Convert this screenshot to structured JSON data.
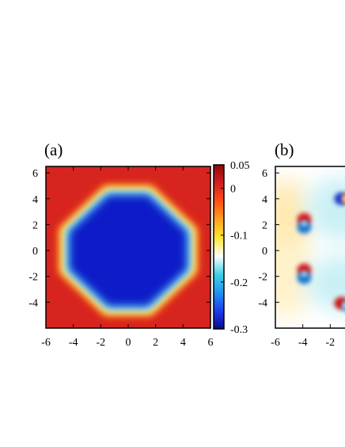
{
  "chart_data": [
    {
      "type": "heatmap",
      "panel_label": "(a)",
      "xlabel": "",
      "ylabel": "",
      "xlim": [
        -6,
        6
      ],
      "ylim": [
        -6,
        6.5
      ],
      "x_ticks": [
        "-6",
        "-4",
        "-2",
        "0",
        "2",
        "4",
        "6"
      ],
      "y_ticks": [
        "6",
        "4",
        "2",
        "0",
        "-2",
        "-4"
      ],
      "y_tick_values": [
        6,
        4,
        2,
        0,
        -2,
        -4
      ],
      "field": {
        "shape": "octagon",
        "center": [
          0,
          0
        ],
        "inner_value": -0.3,
        "outer_value": 0.05,
        "octagon_vertices": [
          [
            -1.5,
            4.5
          ],
          [
            1.5,
            4.5
          ],
          [
            4.5,
            1.5
          ],
          [
            4.5,
            -1.5
          ],
          [
            1.5,
            -4.5
          ],
          [
            -1.5,
            -4.5
          ],
          [
            -4.5,
            -1.5
          ],
          [
            -4.5,
            1.5
          ]
        ]
      },
      "colorbar": {
        "ticks": [
          "0.05",
          "0",
          "-0.1",
          "-0.2",
          "-0.3"
        ],
        "tick_values": [
          0.05,
          0,
          -0.1,
          -0.2,
          -0.3
        ],
        "range": [
          -0.3,
          0.05
        ],
        "colors": [
          "#0a0a8c",
          "#1e3cf0",
          "#1e96f0",
          "#3cd2e6",
          "#ffffff",
          "#ffe632",
          "#ffa01e",
          "#ff5014",
          "#d21e1e",
          "#8c0a0a"
        ]
      }
    },
    {
      "type": "heatmap",
      "panel_label": "(b)",
      "xlabel": "",
      "ylabel": "",
      "xlim": [
        -6,
        6
      ],
      "ylim": [
        -6,
        6.5
      ],
      "x_ticks": [
        "-6",
        "-4",
        "-2"
      ],
      "x_tick_values": [
        -6,
        -4,
        -2
      ],
      "y_ticks": [
        "6",
        "4",
        "2",
        "0",
        "-2",
        "-4"
      ],
      "y_tick_values": [
        6,
        4,
        2,
        0,
        -2,
        -4
      ],
      "dipoles": [
        {
          "x": -3.9,
          "y": 2.1,
          "orientation": "red-above"
        },
        {
          "x": -0.9,
          "y": 4.0,
          "orientation": "blue-left"
        },
        {
          "x": -3.9,
          "y": -1.8,
          "orientation": "red-above"
        },
        {
          "x": -0.9,
          "y": -4.2,
          "orientation": "red-left"
        }
      ],
      "background_colors": {
        "upper_left": "#ffe9b0",
        "center": "#ffffff",
        "lower_left": "#fff1c8",
        "upper_right": "#c9f0f5"
      }
    }
  ]
}
